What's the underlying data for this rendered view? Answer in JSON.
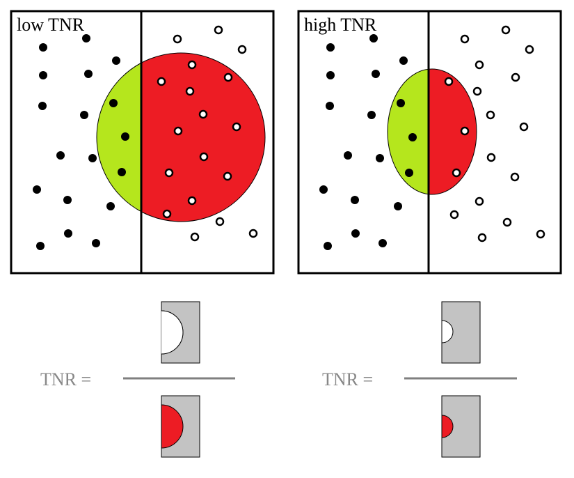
{
  "panels": [
    {
      "label": "low TNR"
    },
    {
      "label": "high TNR"
    }
  ],
  "formulas": [
    {
      "label": "TNR ="
    },
    {
      "label": "TNR ="
    }
  ],
  "colors": {
    "negative_point": "#000000",
    "positive_point": "#ffffff",
    "true_negative_region": "#b5e61d",
    "false_positive_region": "#ed1c24",
    "fraction_block": "#c3c3c3",
    "fraction_bar": "#7f7f7f"
  }
}
